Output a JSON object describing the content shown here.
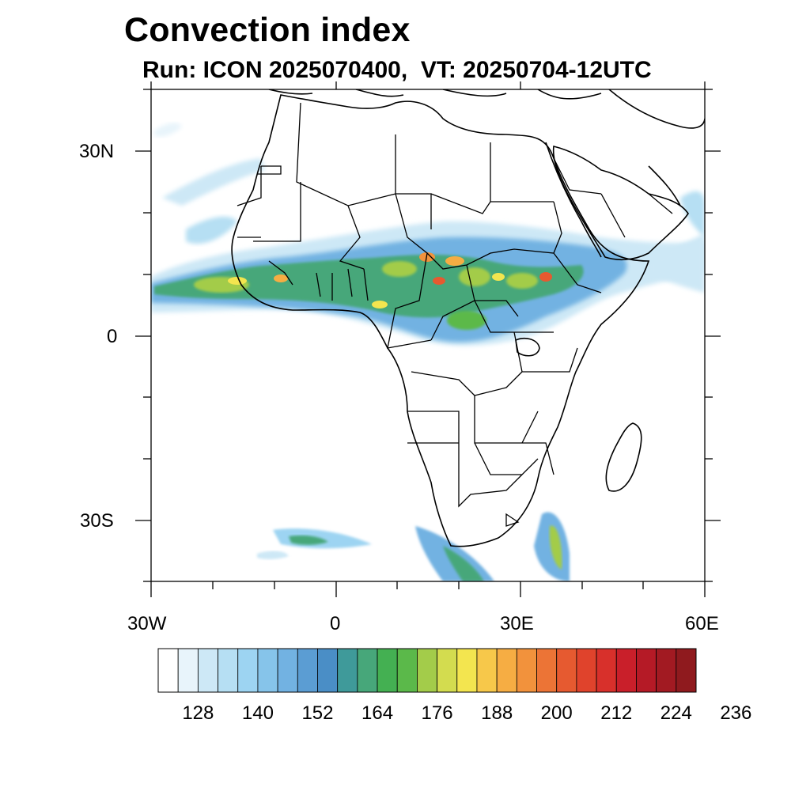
{
  "title": "Convection index",
  "subtitle": "Run: ICON 2025070400,  VT: 20250704-12UTC",
  "lat_labels": [
    "30N",
    "0",
    "30S"
  ],
  "lon_labels": [
    "30W",
    "0",
    "30E",
    "60E"
  ],
  "colorbar": {
    "tick_labels": [
      "128",
      "140",
      "152",
      "164",
      "176",
      "188",
      "200",
      "212",
      "224",
      "236"
    ],
    "colors": [
      "#ffffff",
      "#e8f4fb",
      "#cde8f6",
      "#b6dff3",
      "#9dd4f2",
      "#86c4ea",
      "#72b2e2",
      "#5b9dd3",
      "#4a8ec6",
      "#3f9a9a",
      "#47a77a",
      "#44b052",
      "#5bb94a",
      "#a3cc4a",
      "#d3dc4f",
      "#f3e54f",
      "#f7c84a",
      "#f6ad43",
      "#f2923c",
      "#ec7436",
      "#e65a30",
      "#e0432c",
      "#d8302b",
      "#c91f2a",
      "#b51a26",
      "#a21a22",
      "#8f1a1e"
    ]
  },
  "map_data": {
    "type": "convection-index field",
    "extent": {
      "lon": [
        -30,
        60
      ],
      "lat": [
        -40,
        40
      ]
    },
    "features": [
      "country borders",
      "coastlines",
      "convective band along ITCZ 5N–15N",
      "southern ocean convection near 35S–40S"
    ],
    "colors": {
      "border": "#000000",
      "land": "#ffffff"
    }
  }
}
